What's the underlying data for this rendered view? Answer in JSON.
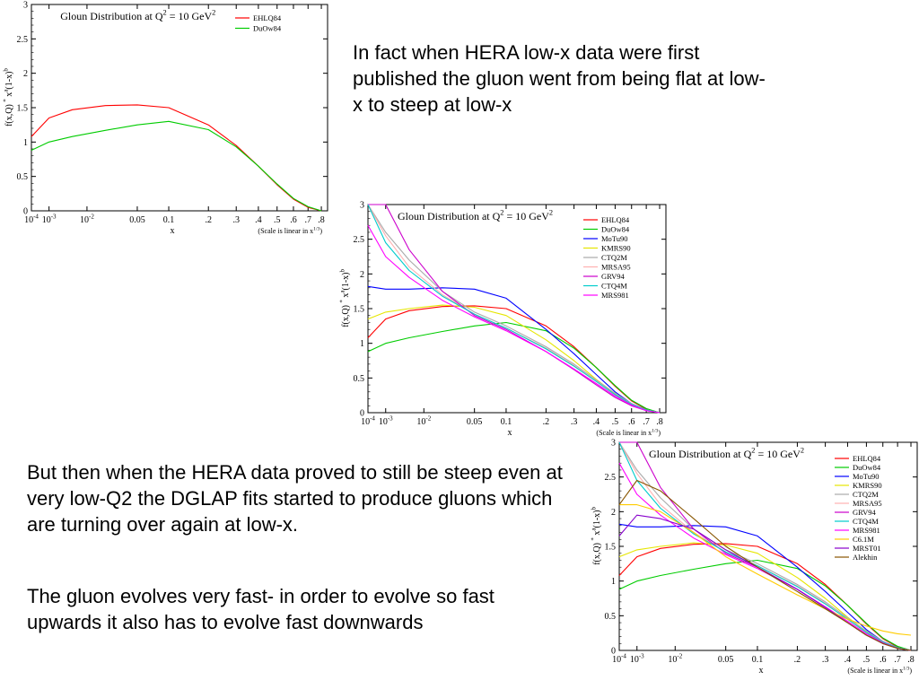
{
  "text_blocks": {
    "intro": "In fact when HERA low-x data were first published the gluon went from being flat at low-x to steep at low-x",
    "middle": "But then when the HERA data proved to still be steep even at very low-Q2 the DGLAP fits started to produce gluons which are turning over again at low-x.",
    "closing": "The gluon evolves very fast- in order to evolve so fast upwards it also has to evolve fast downwards"
  },
  "common": {
    "title_main": "Gloun Distribution at Q",
    "title_sup": "2",
    "title_tail": " = 10 GeV",
    "ylabel_main": "f(x,Q)",
    "ylabel_star": "*",
    "ylabel_x": "x",
    "ylabel_a": "a",
    "ylabel_mid": "(1-x)",
    "ylabel_b": "b",
    "xlabel": "x",
    "scale_note_main": "(Scale is linear in x",
    "scale_note_sup": "1/3",
    "scale_note_tail": ")",
    "y_ticks": [
      "0",
      "0.5",
      "1",
      "1.5",
      "2",
      "2.5",
      "3"
    ],
    "x_tick_labels": [
      {
        "base": "10",
        "sup": "-4"
      },
      {
        "base": "10",
        "sup": "-3"
      },
      {
        "base": "10",
        "sup": "-2"
      },
      {
        "base": "0.05",
        "sup": ""
      },
      {
        "base": "0.1",
        "sup": ""
      },
      {
        "base": ".2",
        "sup": ""
      },
      {
        "base": ".3",
        "sup": ""
      },
      {
        "base": ".4",
        "sup": ""
      },
      {
        "base": ".5",
        "sup": ""
      },
      {
        "base": ".6",
        "sup": ""
      },
      {
        "base": ".7",
        "sup": ""
      },
      {
        "base": ".8",
        "sup": ""
      }
    ],
    "x_tick_values": [
      0.0001,
      0.001,
      0.01,
      0.05,
      0.1,
      0.2,
      0.3,
      0.4,
      0.5,
      0.6,
      0.7,
      0.8
    ]
  },
  "chart_data": [
    {
      "type": "line",
      "title": "Gloun Distribution at Q^2 = 10 GeV^2",
      "xlabel": "x",
      "ylabel": "f(x,Q) * x^a(1-x)^b",
      "xscale": "linear in x^(1/3)",
      "xlim": [
        0.0001,
        0.85
      ],
      "ylim": [
        0,
        3
      ],
      "legend": "top-right",
      "series": [
        {
          "name": "EHLQ84",
          "color": "#ff0000",
          "x": [
            0.0001,
            0.001,
            0.005,
            0.02,
            0.05,
            0.1,
            0.2,
            0.3,
            0.4,
            0.5,
            0.6,
            0.7,
            0.8
          ],
          "y": [
            1.08,
            1.35,
            1.47,
            1.53,
            1.54,
            1.5,
            1.25,
            0.95,
            0.65,
            0.38,
            0.17,
            0.05,
            0.0
          ]
        },
        {
          "name": "DuOw84",
          "color": "#00cc00",
          "x": [
            0.0001,
            0.001,
            0.005,
            0.02,
            0.05,
            0.1,
            0.2,
            0.3,
            0.4,
            0.5,
            0.6,
            0.7,
            0.8
          ],
          "y": [
            0.88,
            1.0,
            1.08,
            1.17,
            1.25,
            1.3,
            1.18,
            0.93,
            0.65,
            0.39,
            0.18,
            0.06,
            0.0
          ]
        }
      ]
    },
    {
      "type": "line",
      "title": "Gloun Distribution at Q^2 = 10 GeV^2",
      "xlabel": "x",
      "ylabel": "f(x,Q) * x^a(1-x)^b",
      "xscale": "linear in x^(1/3)",
      "xlim": [
        0.0001,
        0.85
      ],
      "ylim": [
        0,
        3
      ],
      "legend": "top-right",
      "series": [
        {
          "name": "EHLQ84",
          "color": "#ff0000",
          "x": [
            0.0001,
            0.001,
            0.005,
            0.02,
            0.05,
            0.1,
            0.2,
            0.3,
            0.4,
            0.5,
            0.6,
            0.7,
            0.8
          ],
          "y": [
            1.08,
            1.35,
            1.47,
            1.53,
            1.54,
            1.5,
            1.25,
            0.95,
            0.65,
            0.38,
            0.17,
            0.05,
            0.0
          ]
        },
        {
          "name": "DuOw84",
          "color": "#00cc00",
          "x": [
            0.0001,
            0.001,
            0.005,
            0.02,
            0.05,
            0.1,
            0.2,
            0.3,
            0.4,
            0.5,
            0.6,
            0.7,
            0.8
          ],
          "y": [
            0.88,
            1.0,
            1.08,
            1.17,
            1.25,
            1.3,
            1.18,
            0.93,
            0.65,
            0.39,
            0.18,
            0.06,
            0.0
          ]
        },
        {
          "name": "MoTu90",
          "color": "#0000ff",
          "x": [
            0.0001,
            0.001,
            0.005,
            0.02,
            0.05,
            0.1,
            0.2,
            0.3,
            0.4,
            0.5,
            0.6,
            0.7,
            0.8
          ],
          "y": [
            1.82,
            1.78,
            1.78,
            1.8,
            1.78,
            1.65,
            1.2,
            0.85,
            0.55,
            0.3,
            0.13,
            0.04,
            0.0
          ]
        },
        {
          "name": "KMRS90",
          "color": "#e6e600",
          "x": [
            0.0001,
            0.001,
            0.005,
            0.02,
            0.05,
            0.1,
            0.2,
            0.3,
            0.4,
            0.5,
            0.6,
            0.7,
            0.8
          ],
          "y": [
            1.35,
            1.45,
            1.5,
            1.55,
            1.52,
            1.4,
            1.05,
            0.75,
            0.48,
            0.27,
            0.12,
            0.04,
            0.0
          ]
        },
        {
          "name": "CTQ2M",
          "color": "#aaaaaa",
          "x": [
            0.0001,
            0.001,
            0.005,
            0.02,
            0.05,
            0.1,
            0.2,
            0.3,
            0.4,
            0.5,
            0.6,
            0.7,
            0.8
          ],
          "y": [
            3.2,
            2.6,
            2.2,
            1.75,
            1.45,
            1.25,
            0.95,
            0.7,
            0.47,
            0.28,
            0.13,
            0.04,
            0.0
          ]
        },
        {
          "name": "MRSA95",
          "color": "#ffb0b0",
          "x": [
            0.0001,
            0.001,
            0.005,
            0.02,
            0.05,
            0.1,
            0.2,
            0.3,
            0.4,
            0.5,
            0.6,
            0.7,
            0.8
          ],
          "y": [
            3.2,
            2.55,
            2.1,
            1.7,
            1.42,
            1.22,
            0.93,
            0.68,
            0.45,
            0.26,
            0.12,
            0.04,
            0.0
          ]
        },
        {
          "name": "GRV94",
          "color": "#cc00cc",
          "x": [
            0.0001,
            0.001,
            0.005,
            0.02,
            0.05,
            0.1,
            0.2,
            0.3,
            0.4,
            0.5,
            0.6,
            0.7,
            0.8
          ],
          "y": [
            3.2,
            3.0,
            2.35,
            1.75,
            1.4,
            1.2,
            0.88,
            0.62,
            0.4,
            0.22,
            0.1,
            0.03,
            0.0
          ]
        },
        {
          "name": "CTQ4M",
          "color": "#00cccc",
          "x": [
            0.0001,
            0.001,
            0.005,
            0.02,
            0.05,
            0.1,
            0.2,
            0.3,
            0.4,
            0.5,
            0.6,
            0.7,
            0.8
          ],
          "y": [
            3.0,
            2.45,
            2.05,
            1.68,
            1.42,
            1.22,
            0.92,
            0.67,
            0.45,
            0.26,
            0.12,
            0.04,
            0.0
          ]
        },
        {
          "name": "MRS981",
          "color": "#ff00ff",
          "x": [
            0.0001,
            0.001,
            0.005,
            0.02,
            0.05,
            0.1,
            0.2,
            0.3,
            0.4,
            0.5,
            0.6,
            0.7,
            0.8
          ],
          "y": [
            2.7,
            2.25,
            1.95,
            1.62,
            1.38,
            1.18,
            0.88,
            0.63,
            0.42,
            0.24,
            0.11,
            0.03,
            0.0
          ]
        }
      ]
    },
    {
      "type": "line",
      "title": "Gloun Distribution at Q^2 = 10 GeV^2",
      "xlabel": "x",
      "ylabel": "f(x,Q) * x^a(1-x)^b",
      "xscale": "linear in x^(1/3)",
      "xlim": [
        0.0001,
        0.85
      ],
      "ylim": [
        0,
        3
      ],
      "legend": "top-right",
      "series": [
        {
          "name": "EHLQ84",
          "color": "#ff0000",
          "x": [
            0.0001,
            0.001,
            0.005,
            0.02,
            0.05,
            0.1,
            0.2,
            0.3,
            0.4,
            0.5,
            0.6,
            0.7,
            0.8
          ],
          "y": [
            1.08,
            1.35,
            1.47,
            1.53,
            1.54,
            1.5,
            1.25,
            0.95,
            0.65,
            0.38,
            0.17,
            0.05,
            0.0
          ]
        },
        {
          "name": "DuOw84",
          "color": "#00cc00",
          "x": [
            0.0001,
            0.001,
            0.005,
            0.02,
            0.05,
            0.1,
            0.2,
            0.3,
            0.4,
            0.5,
            0.6,
            0.7,
            0.8
          ],
          "y": [
            0.88,
            1.0,
            1.08,
            1.17,
            1.25,
            1.3,
            1.18,
            0.93,
            0.65,
            0.39,
            0.18,
            0.06,
            0.0
          ]
        },
        {
          "name": "MoTu90",
          "color": "#0000ff",
          "x": [
            0.0001,
            0.001,
            0.005,
            0.02,
            0.05,
            0.1,
            0.2,
            0.3,
            0.4,
            0.5,
            0.6,
            0.7,
            0.8
          ],
          "y": [
            1.82,
            1.78,
            1.78,
            1.8,
            1.78,
            1.65,
            1.2,
            0.85,
            0.55,
            0.3,
            0.13,
            0.04,
            0.0
          ]
        },
        {
          "name": "KMRS90",
          "color": "#e6e600",
          "x": [
            0.0001,
            0.001,
            0.005,
            0.02,
            0.05,
            0.1,
            0.2,
            0.3,
            0.4,
            0.5,
            0.6,
            0.7,
            0.8
          ],
          "y": [
            1.35,
            1.45,
            1.5,
            1.55,
            1.52,
            1.4,
            1.05,
            0.75,
            0.48,
            0.27,
            0.12,
            0.04,
            0.0
          ]
        },
        {
          "name": "CTQ2M",
          "color": "#aaaaaa",
          "x": [
            0.0001,
            0.001,
            0.005,
            0.02,
            0.05,
            0.1,
            0.2,
            0.3,
            0.4,
            0.5,
            0.6,
            0.7,
            0.8
          ],
          "y": [
            3.2,
            2.6,
            2.2,
            1.75,
            1.45,
            1.25,
            0.95,
            0.7,
            0.47,
            0.28,
            0.13,
            0.04,
            0.0
          ]
        },
        {
          "name": "MRSA95",
          "color": "#ffb0b0",
          "x": [
            0.0001,
            0.001,
            0.005,
            0.02,
            0.05,
            0.1,
            0.2,
            0.3,
            0.4,
            0.5,
            0.6,
            0.7,
            0.8
          ],
          "y": [
            3.2,
            2.55,
            2.1,
            1.7,
            1.42,
            1.22,
            0.93,
            0.68,
            0.45,
            0.26,
            0.12,
            0.04,
            0.0
          ]
        },
        {
          "name": "GRV94",
          "color": "#cc00cc",
          "x": [
            0.0001,
            0.001,
            0.005,
            0.02,
            0.05,
            0.1,
            0.2,
            0.3,
            0.4,
            0.5,
            0.6,
            0.7,
            0.8
          ],
          "y": [
            3.2,
            3.0,
            2.35,
            1.75,
            1.4,
            1.2,
            0.88,
            0.62,
            0.4,
            0.22,
            0.1,
            0.03,
            0.0
          ]
        },
        {
          "name": "CTQ4M",
          "color": "#00cccc",
          "x": [
            0.0001,
            0.001,
            0.005,
            0.02,
            0.05,
            0.1,
            0.2,
            0.3,
            0.4,
            0.5,
            0.6,
            0.7,
            0.8
          ],
          "y": [
            3.0,
            2.45,
            2.05,
            1.68,
            1.42,
            1.22,
            0.92,
            0.67,
            0.45,
            0.26,
            0.12,
            0.04,
            0.0
          ]
        },
        {
          "name": "MRS981",
          "color": "#ff00ff",
          "x": [
            0.0001,
            0.001,
            0.005,
            0.02,
            0.05,
            0.1,
            0.2,
            0.3,
            0.4,
            0.5,
            0.6,
            0.7,
            0.8
          ],
          "y": [
            2.7,
            2.25,
            1.95,
            1.62,
            1.38,
            1.18,
            0.88,
            0.63,
            0.42,
            0.24,
            0.11,
            0.03,
            0.0
          ]
        },
        {
          "name": "C6.1M",
          "color": "#ffcc00",
          "x": [
            0.0001,
            0.001,
            0.005,
            0.02,
            0.05,
            0.1,
            0.2,
            0.3,
            0.4,
            0.5,
            0.6,
            0.7,
            0.8
          ],
          "y": [
            2.1,
            2.1,
            2.0,
            1.7,
            1.35,
            1.1,
            0.8,
            0.6,
            0.45,
            0.35,
            0.28,
            0.24,
            0.22
          ]
        },
        {
          "name": "MRST01",
          "color": "#8800cc",
          "x": [
            0.0001,
            0.001,
            0.005,
            0.02,
            0.05,
            0.1,
            0.2,
            0.3,
            0.4,
            0.5,
            0.6,
            0.7,
            0.8
          ],
          "y": [
            1.65,
            1.95,
            1.9,
            1.75,
            1.45,
            1.2,
            0.88,
            0.62,
            0.4,
            0.22,
            0.1,
            0.03,
            0.0
          ]
        },
        {
          "name": "Alekhin",
          "color": "#885500",
          "x": [
            0.0001,
            0.001,
            0.005,
            0.02,
            0.05,
            0.1,
            0.2,
            0.3,
            0.4,
            0.5,
            0.6,
            0.7,
            0.8
          ],
          "y": [
            2.1,
            2.45,
            2.3,
            1.9,
            1.5,
            1.2,
            0.85,
            0.6,
            0.4,
            0.22,
            0.1,
            0.03,
            0.0
          ]
        }
      ]
    }
  ]
}
